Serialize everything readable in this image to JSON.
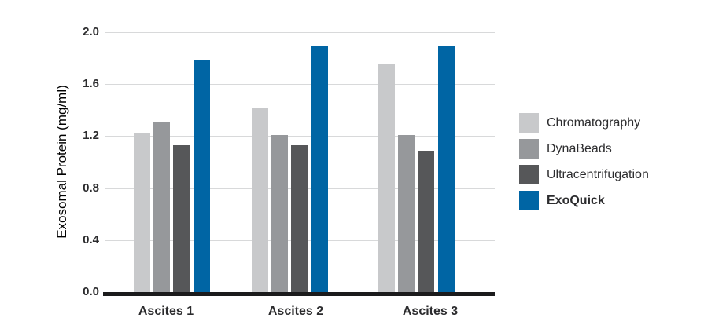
{
  "chart_data": {
    "type": "bar",
    "title": "",
    "ylabel": "Exosomal Protein (mg/ml)",
    "xlabel": "",
    "ylim": [
      0,
      2.0
    ],
    "ytick_labels": [
      "0.0",
      "0.4",
      "0.8",
      "1.2",
      "1.6",
      "2.0"
    ],
    "categories": [
      "Ascites 1",
      "Ascites 2",
      "Ascites 3"
    ],
    "series": [
      {
        "name": "Chromatography",
        "color": "#c8c9cb",
        "bold": false,
        "values": [
          1.22,
          1.42,
          1.75
        ]
      },
      {
        "name": "DynaBeads",
        "color": "#96989b",
        "bold": false,
        "values": [
          1.31,
          1.21,
          1.21
        ]
      },
      {
        "name": "Ultracentrifugation",
        "color": "#565759",
        "bold": false,
        "values": [
          1.13,
          1.13,
          1.09
        ]
      },
      {
        "name": "ExoQuick",
        "color": "#0065a4",
        "bold": true,
        "values": [
          1.78,
          1.9,
          1.9
        ]
      }
    ],
    "legend_position": "right",
    "grid": true,
    "colors": {
      "grid_line": "#d8d9da",
      "axis_line": "#1b1b1c",
      "text": "#2c2c2e",
      "background": "#ffffff"
    }
  }
}
